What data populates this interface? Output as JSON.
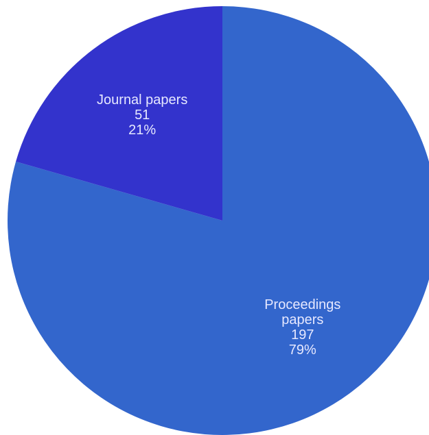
{
  "chart_data": {
    "type": "pie",
    "title": "",
    "start_angle_deg": 0,
    "direction": "clockwise",
    "slices": [
      {
        "label_lines": [
          "Proceedings",
          "papers"
        ],
        "value": 197,
        "percent_label": "79%",
        "color": "#3366cc"
      },
      {
        "label_lines": [
          "Journal papers"
        ],
        "value": 51,
        "percent_label": "21%",
        "color": "#3333cc"
      }
    ],
    "label_color": "#e6e8ff",
    "background": "#ffffff"
  }
}
